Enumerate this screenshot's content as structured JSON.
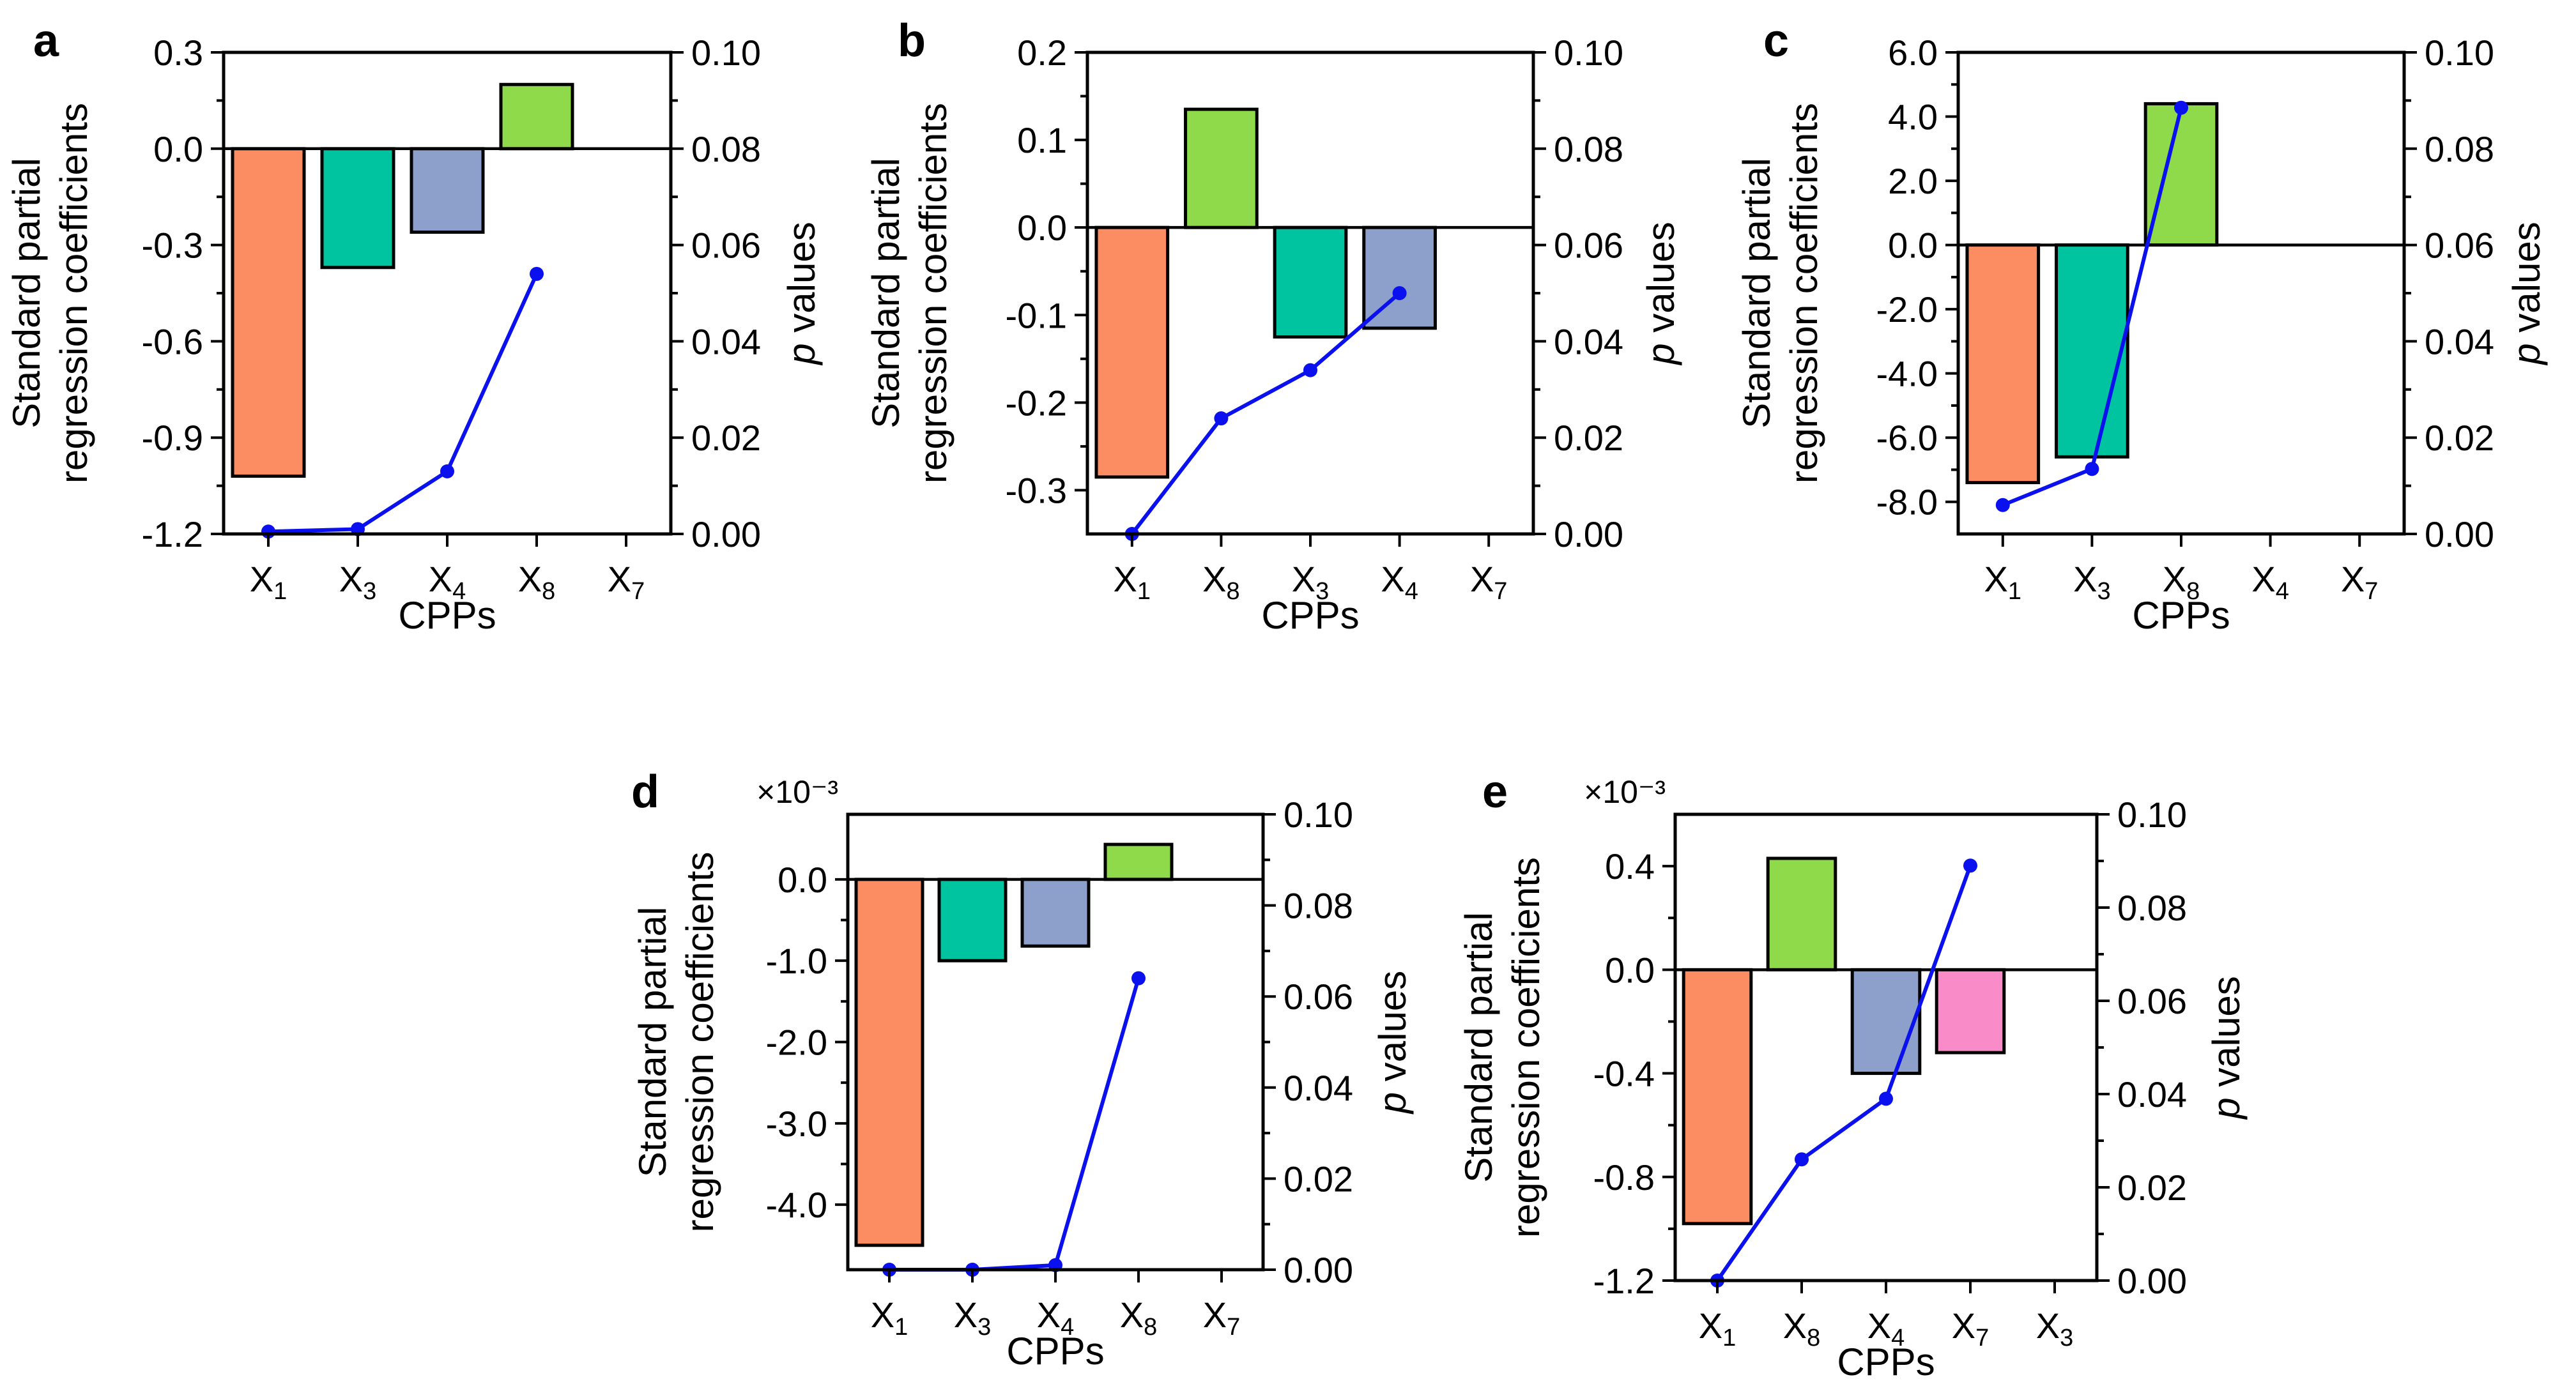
{
  "colors": {
    "X1": "#fc8d62",
    "X3": "#00c4a0",
    "X4": "#8da0cb",
    "X8": "#8fda4b",
    "X7": "#f98cc8",
    "pline": "#0a10ee"
  },
  "chart_data": [
    {
      "id": "a",
      "panel_label": "a",
      "type": "bar",
      "categories": [
        "X1",
        "X3",
        "X4",
        "X8",
        "X7"
      ],
      "category_subscripts": [
        "1",
        "3",
        "4",
        "8",
        "7"
      ],
      "values": [
        -1.02,
        -0.37,
        -0.26,
        0.2,
        null
      ],
      "p_values": [
        0.0005,
        0.001,
        0.013,
        0.054,
        null
      ],
      "xlabel": "CPPs",
      "ylabel": "Standard partial regression coefficients",
      "y2label": "p values",
      "ylim": [
        -1.2,
        0.3
      ],
      "yticks": [
        0.3,
        0.0,
        -0.3,
        -0.6,
        -0.9,
        -1.2
      ],
      "ytick_labels": [
        "0.3",
        "0.0",
        "-0.3",
        "-0.6",
        "-0.9",
        "-1.2"
      ],
      "y2lim": [
        0.0,
        0.1
      ],
      "y2ticks": [
        0.1,
        0.08,
        0.06,
        0.04,
        0.02,
        0.0
      ],
      "y2tick_labels": [
        "0.10",
        "0.08",
        "0.06",
        "0.04",
        "0.02",
        "0.00"
      ],
      "exponent_label": ""
    },
    {
      "id": "b",
      "panel_label": "b",
      "type": "bar",
      "categories": [
        "X1",
        "X8",
        "X3",
        "X4",
        "X7"
      ],
      "category_subscripts": [
        "1",
        "8",
        "3",
        "4",
        "7"
      ],
      "values": [
        -0.285,
        0.135,
        -0.125,
        -0.115,
        null
      ],
      "p_values": [
        0.0,
        0.024,
        0.034,
        0.05,
        null
      ],
      "xlabel": "CPPs",
      "ylabel": "Standard partial regression coefficients",
      "y2label": "p values",
      "ylim": [
        -0.35,
        0.2
      ],
      "yticks": [
        0.2,
        0.1,
        0.0,
        -0.1,
        -0.2,
        -0.3
      ],
      "ytick_labels": [
        "0.2",
        "0.1",
        "0.0",
        "-0.1",
        "-0.2",
        "-0.3"
      ],
      "y2lim": [
        0.0,
        0.1
      ],
      "y2ticks": [
        0.1,
        0.08,
        0.06,
        0.04,
        0.02,
        0.0
      ],
      "y2tick_labels": [
        "0.10",
        "0.08",
        "0.06",
        "0.04",
        "0.02",
        "0.00"
      ],
      "exponent_label": ""
    },
    {
      "id": "c",
      "panel_label": "c",
      "type": "bar",
      "categories": [
        "X1",
        "X3",
        "X8",
        "X4",
        "X7"
      ],
      "category_subscripts": [
        "1",
        "3",
        "8",
        "4",
        "7"
      ],
      "values": [
        -7.4,
        -6.6,
        4.4,
        null,
        null
      ],
      "p_values": [
        0.006,
        0.0135,
        0.0885,
        null,
        null
      ],
      "xlabel": "CPPs",
      "ylabel": "Standard partial regression coefficients",
      "y2label": "p values",
      "ylim": [
        -9.0,
        6.0
      ],
      "yticks": [
        6.0,
        4.0,
        2.0,
        0.0,
        -2.0,
        -4.0,
        -6.0,
        -8.0
      ],
      "ytick_labels": [
        "6.0",
        "4.0",
        "2.0",
        "0.0",
        "-2.0",
        "-4.0",
        "-6.0",
        "-8.0"
      ],
      "y2lim": [
        0.0,
        0.1
      ],
      "y2ticks": [
        0.1,
        0.08,
        0.06,
        0.04,
        0.02,
        0.0
      ],
      "y2tick_labels": [
        "0.10",
        "0.08",
        "0.06",
        "0.04",
        "0.02",
        "0.00"
      ],
      "exponent_label": ""
    },
    {
      "id": "d",
      "panel_label": "d",
      "type": "bar",
      "categories": [
        "X1",
        "X3",
        "X4",
        "X8",
        "X7"
      ],
      "category_subscripts": [
        "1",
        "3",
        "4",
        "8",
        "7"
      ],
      "values": [
        -4.5,
        -1.0,
        -0.82,
        0.43,
        null
      ],
      "p_values": [
        0.0,
        0.0,
        0.001,
        0.064,
        null
      ],
      "xlabel": "CPPs",
      "ylabel": "Standard partial regression coefficients",
      "y2label": "p values",
      "ylim": [
        -4.8,
        0.8
      ],
      "yticks": [
        0.0,
        -1.0,
        -2.0,
        -3.0,
        -4.0
      ],
      "ytick_labels": [
        "0.0",
        "-1.0",
        "-2.0",
        "-3.0",
        "-4.0"
      ],
      "y2lim": [
        0.0,
        0.1
      ],
      "y2ticks": [
        0.1,
        0.08,
        0.06,
        0.04,
        0.02,
        0.0
      ],
      "y2tick_labels": [
        "0.10",
        "0.08",
        "0.06",
        "0.04",
        "0.02",
        "0.00"
      ],
      "exponent_label": "×10⁻³"
    },
    {
      "id": "e",
      "panel_label": "e",
      "type": "bar",
      "categories": [
        "X1",
        "X8",
        "X4",
        "X7",
        "X3"
      ],
      "category_subscripts": [
        "1",
        "8",
        "4",
        "7",
        "3"
      ],
      "values": [
        -0.98,
        0.43,
        -0.4,
        -0.32,
        null
      ],
      "p_values": [
        0.0,
        0.026,
        0.039,
        0.089,
        null
      ],
      "xlabel": "CPPs",
      "ylabel": "Standard partial regression coefficients",
      "y2label": "p values",
      "ylim": [
        -1.2,
        0.6
      ],
      "yticks": [
        0.4,
        0.0,
        -0.4,
        -0.8,
        -1.2
      ],
      "ytick_labels": [
        "0.4",
        "0.0",
        "-0.4",
        "-0.8",
        "-1.2"
      ],
      "y2lim": [
        0.0,
        0.1
      ],
      "y2ticks": [
        0.1,
        0.08,
        0.06,
        0.04,
        0.02,
        0.0
      ],
      "y2tick_labels": [
        "0.10",
        "0.08",
        "0.06",
        "0.04",
        "0.02",
        "0.00"
      ],
      "exponent_label": "×10⁻³"
    }
  ]
}
